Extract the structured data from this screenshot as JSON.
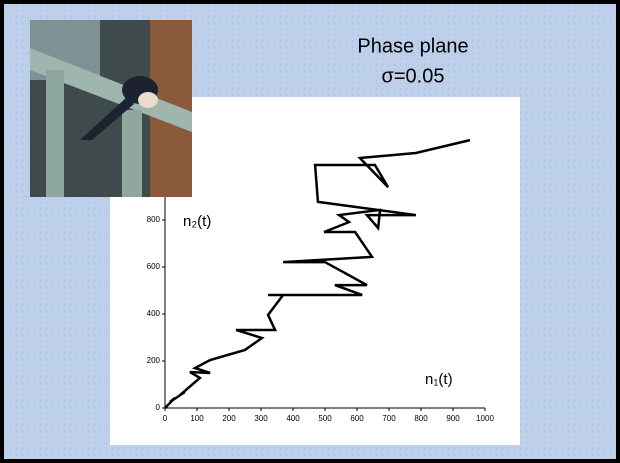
{
  "chart_data": {
    "type": "line",
    "title": "Phase plane",
    "subtitle": "σ=0.05",
    "x_label": "n₁(t)",
    "y_label": "n₂(t)",
    "series": [
      {
        "color": "#000000",
        "x": [
          0,
          31,
          16,
          62,
          47,
          109,
          78,
          141,
          94,
          141,
          250,
          303,
          222,
          344,
          322,
          369,
          322,
          616,
          531,
          631,
          500,
          369,
          647,
          594,
          497,
          575,
          544,
          672,
          666,
          631,
          784,
          478,
          469,
          656,
          697,
          609,
          784,
          953
        ],
        "values": [
          0,
          43,
          26,
          68,
          55,
          128,
          153,
          149,
          170,
          204,
          247,
          298,
          332,
          332,
          396,
          481,
          481,
          481,
          523,
          523,
          621,
          621,
          643,
          749,
          749,
          791,
          821,
          843,
          766,
          821,
          821,
          877,
          1034,
          1034,
          940,
          1064,
          1085,
          1140
        ]
      }
    ],
    "xlim": [
      0,
      1000
    ],
    "xticks": [
      0,
      100,
      200,
      300,
      400,
      500,
      600,
      700,
      800,
      900,
      1000
    ],
    "ylim": [
      0,
      1200
    ],
    "yticks": [
      0,
      200,
      400,
      600,
      800
    ]
  }
}
